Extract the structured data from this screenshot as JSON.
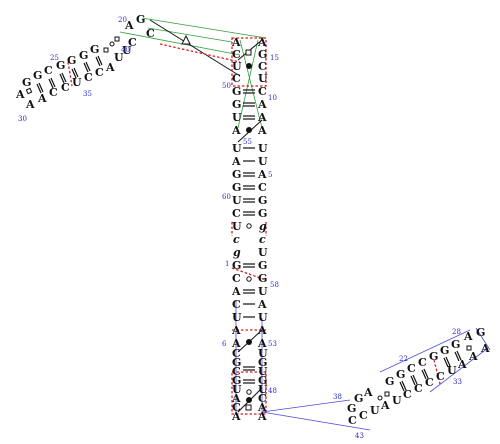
{
  "left_hairpin": {
    "numbers": [
      "20",
      "25",
      "30",
      "35",
      "40"
    ],
    "upper_strand": [
      "A",
      "G",
      "G",
      "C",
      "G",
      "G",
      "G",
      "G",
      "A",
      "G"
    ],
    "lower_strand": [
      "A",
      "A",
      "C",
      "C",
      "U",
      "C",
      "C",
      "A",
      "U",
      "U",
      "C",
      "C"
    ]
  },
  "stem": {
    "numbers": [
      "15",
      "10",
      "5",
      "60",
      "1",
      "58",
      "6",
      "53",
      "48",
      "50",
      "55"
    ],
    "left_strand": [
      "A",
      "C",
      "U",
      "C",
      "G",
      "G",
      "U",
      "A",
      "U",
      "A",
      "G",
      "G",
      "U",
      "C",
      "U",
      "c",
      "g",
      "G",
      "C",
      "A",
      "C",
      "U",
      "A",
      "A",
      "C",
      "G",
      "C",
      "G",
      "U",
      "A",
      "C",
      "A"
    ],
    "right_strand": [
      "A",
      "G",
      "C",
      "U",
      "C",
      "A",
      "A",
      "A",
      "U",
      "U",
      "A",
      "C",
      "G",
      "G",
      "g",
      "c",
      "U",
      "G",
      "G",
      "U",
      "A",
      "U",
      "A",
      "A",
      "U",
      "G",
      "U",
      "G",
      "U",
      "C",
      "A",
      "A"
    ]
  },
  "right_hairpin": {
    "numbers": [
      "28",
      "22",
      "33",
      "38",
      "43"
    ],
    "upper_strand": [
      "G",
      "G",
      "A",
      "G",
      "G",
      "C",
      "C",
      "G",
      "G",
      "G",
      "A",
      "G"
    ],
    "lower_strand": [
      "C",
      "C",
      "U",
      "A",
      "U",
      "C",
      "C",
      "C",
      "C",
      "U",
      "A",
      "A",
      "A"
    ]
  }
}
